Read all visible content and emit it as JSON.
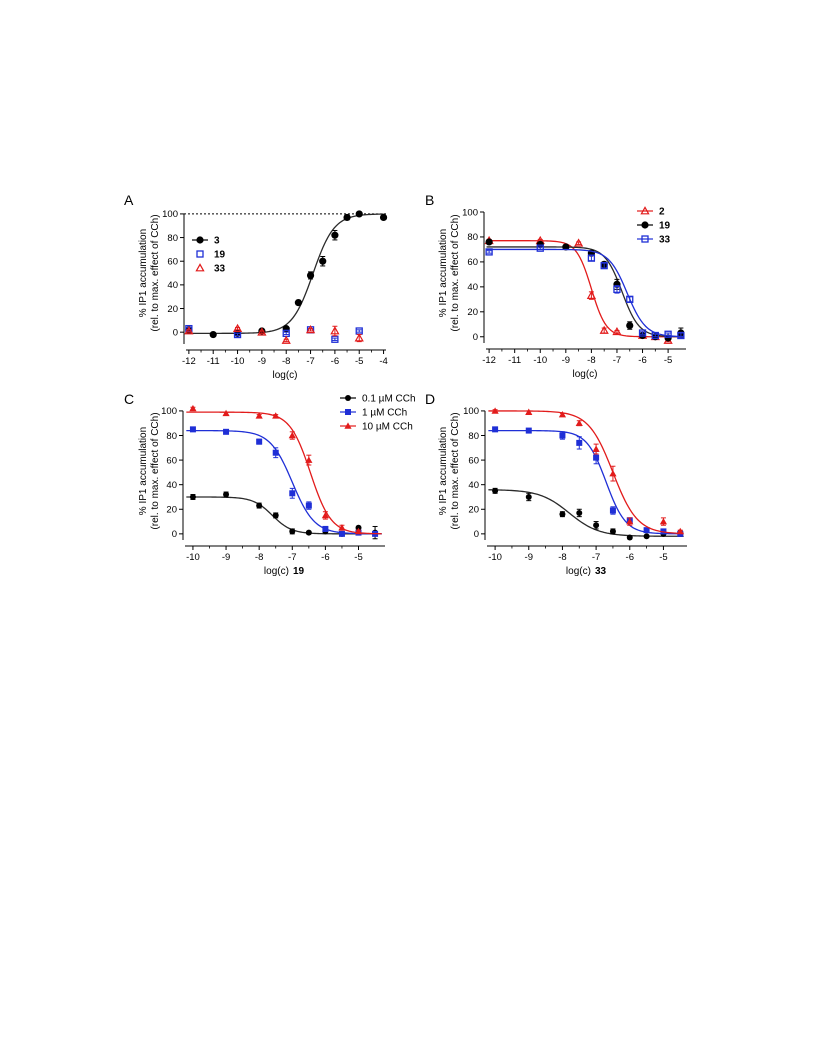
{
  "chart_data": [
    {
      "panel": "A",
      "type": "scatter",
      "xlabel": "log(c)",
      "xlabel_bold": "",
      "ylabel": [
        "% IP1 accumulation",
        "(rel. to max. effect of CCh)"
      ],
      "xlim": [
        -12.2,
        -3.9
      ],
      "ylim": [
        -10,
        105
      ],
      "xticks": [
        -12,
        -11,
        -10,
        -9,
        -8,
        -7,
        -6,
        -5,
        -4
      ],
      "yticks": [
        0,
        20,
        40,
        60,
        80,
        100
      ],
      "reference_line": 100,
      "legend_position": "left",
      "series": [
        {
          "name": "3",
          "color": "#000000",
          "marker": "circle",
          "x": [
            -12,
            -11,
            -10,
            -9,
            -8,
            -7.5,
            -7,
            -6.5,
            -6,
            -5.5,
            -5,
            -4
          ],
          "y": [
            2,
            -2,
            -1,
            1,
            3,
            25,
            48,
            60,
            82,
            97,
            100,
            97
          ],
          "err": [
            1,
            1,
            1,
            1,
            1,
            2,
            3,
            4,
            4,
            2,
            1,
            1
          ],
          "fit": {
            "kind": "agonist",
            "bottom": -1,
            "top": 100,
            "logEC50": -6.9,
            "hill": 1
          }
        },
        {
          "name": "19",
          "color": "#1f2fd6",
          "marker": "square",
          "x": [
            -12,
            -10,
            -8,
            -7,
            -6,
            -5
          ],
          "y": [
            3,
            -2,
            -1,
            2,
            -6,
            1
          ],
          "err": [
            1,
            1,
            1,
            1,
            1,
            1
          ],
          "fit": null
        },
        {
          "name": "33",
          "color": "#e21b1b",
          "marker": "triangle",
          "x": [
            -12,
            -10,
            -9,
            -8,
            -7,
            -6,
            -5
          ],
          "y": [
            1,
            3,
            0,
            -7,
            2,
            1,
            -5
          ],
          "err": [
            1,
            1,
            1,
            1,
            1,
            4,
            3
          ],
          "fit": null
        }
      ]
    },
    {
      "panel": "B",
      "type": "scatter",
      "xlabel": "log(c)",
      "xlabel_bold": "",
      "ylabel": [
        "% IP1 accumulation",
        "(rel. to max. effect of CCh)"
      ],
      "xlim": [
        -12.2,
        -4.3
      ],
      "ylim": [
        -5,
        104
      ],
      "xticks": [
        -12,
        -11,
        -10,
        -9,
        -8,
        -7,
        -6,
        -5
      ],
      "yticks": [
        0,
        20,
        40,
        60,
        80,
        100
      ],
      "reference_line": null,
      "legend_position": "top-right",
      "series": [
        {
          "name": "2",
          "color": "#e21b1b",
          "marker": "triangle",
          "x": [
            -12,
            -10,
            -8.5,
            -8,
            -7.5,
            -7,
            -6,
            -5.5,
            -5
          ],
          "y": [
            77,
            77,
            75,
            33,
            5,
            4,
            1,
            0,
            -3
          ],
          "err": [
            1,
            1,
            1,
            3,
            2,
            1,
            1,
            1,
            1
          ],
          "fit": {
            "kind": "inhibitor",
            "bottom": 0,
            "top": 77,
            "logIC50": -8.0,
            "hill": 1.5
          }
        },
        {
          "name": "19",
          "color": "#000000",
          "marker": "circle",
          "x": [
            -12,
            -10,
            -9,
            -8,
            -7.5,
            -7,
            -6.5,
            -6,
            -5.5,
            -5,
            -4.5
          ],
          "y": [
            76,
            74,
            72,
            67,
            58,
            42,
            9,
            1,
            0,
            -1,
            3
          ],
          "err": [
            1,
            1,
            1,
            2,
            2,
            4,
            3,
            1,
            1,
            1,
            4
          ],
          "fit": {
            "kind": "inhibitor",
            "bottom": 0,
            "top": 72,
            "logIC50": -6.8,
            "hill": 1.3
          }
        },
        {
          "name": "33",
          "color": "#1f2fd6",
          "marker": "square",
          "x": [
            -12,
            -10,
            -8,
            -7.5,
            -7,
            -6.5,
            -6,
            -5.5,
            -5,
            -4.5
          ],
          "y": [
            68,
            71,
            63,
            57,
            38,
            30,
            3,
            1,
            2,
            1
          ],
          "err": [
            1,
            1,
            2,
            2,
            3,
            2,
            1,
            1,
            1,
            2
          ],
          "fit": {
            "kind": "inhibitor",
            "bottom": 0,
            "top": 70,
            "logIC50": -6.6,
            "hill": 1.2
          }
        }
      ]
    },
    {
      "panel": "C",
      "type": "scatter",
      "xlabel": "log(c)",
      "xlabel_bold": "19",
      "ylabel": [
        "% IP1 accumulation",
        "(rel. to max. effect of CCh)"
      ],
      "xlim": [
        -10.3,
        -4.2
      ],
      "ylim": [
        -5,
        104
      ],
      "xticks": [
        -10,
        -9,
        -8,
        -7,
        -6,
        -5
      ],
      "yticks": [
        0,
        20,
        40,
        60,
        80,
        100
      ],
      "reference_line": null,
      "legend_position": "top-right",
      "series": [
        {
          "name": "0.1 µM CCh",
          "color": "#000000",
          "marker": "circle",
          "x": [
            -10,
            -9,
            -8,
            -7.5,
            -7,
            -6.5,
            -6,
            -5.5,
            -5,
            -4.5
          ],
          "y": [
            30,
            32,
            23,
            15,
            2,
            1,
            2,
            0,
            5,
            1
          ],
          "err": [
            2,
            2,
            2,
            2,
            2,
            1,
            1,
            1,
            1,
            5
          ],
          "fit": {
            "kind": "inhibitor",
            "bottom": 0,
            "top": 30,
            "logIC50": -7.6,
            "hill": 1.5
          }
        },
        {
          "name": "1 µM CCh",
          "color": "#1f2fd6",
          "marker": "square",
          "x": [
            -10,
            -9,
            -8,
            -7.5,
            -7,
            -6.5,
            -6,
            -5.5,
            -5,
            -4.5
          ],
          "y": [
            85,
            83,
            75,
            66,
            33,
            23,
            4,
            0,
            1,
            0
          ],
          "err": [
            1,
            1,
            2,
            4,
            4,
            3,
            2,
            1,
            1,
            1
          ],
          "fit": {
            "kind": "inhibitor",
            "bottom": 0,
            "top": 84,
            "logIC50": -7.0,
            "hill": 1.3
          }
        },
        {
          "name": "10 µM CCh",
          "color": "#e21b1b",
          "marker": "triangle",
          "x": [
            -10,
            -9,
            -8,
            -7.5,
            -7,
            -6.5,
            -6,
            -5.5,
            -5
          ],
          "y": [
            102,
            98,
            96,
            96,
            80,
            60,
            15,
            5,
            2
          ],
          "err": [
            1,
            1,
            1,
            1,
            3,
            4,
            3,
            2,
            1
          ],
          "fit": {
            "kind": "inhibitor",
            "bottom": 0,
            "top": 99,
            "logIC50": -6.45,
            "hill": 1.4
          }
        }
      ]
    },
    {
      "panel": "D",
      "type": "scatter",
      "xlabel": "log(c)",
      "xlabel_bold": "33",
      "ylabel": [
        "% IP1 accumulation",
        "(rel. to max. effect of CCh)"
      ],
      "xlim": [
        -10.3,
        -4.3
      ],
      "ylim": [
        -5,
        104
      ],
      "xticks": [
        -10,
        -9,
        -8,
        -7,
        -6,
        -5
      ],
      "yticks": [
        0,
        20,
        40,
        60,
        80,
        100
      ],
      "reference_line": null,
      "legend_position": "",
      "series": [
        {
          "name": "0.1 µM CCh",
          "color": "#000000",
          "marker": "circle",
          "x": [
            -10,
            -9,
            -8,
            -7.5,
            -7,
            -6.5,
            -6,
            -5.5,
            -5,
            -4.5
          ],
          "y": [
            35,
            30,
            16,
            17,
            7,
            2,
            -3,
            -2,
            0,
            1
          ],
          "err": [
            2,
            3,
            2,
            3,
            3,
            2,
            1,
            1,
            1,
            1
          ],
          "fit": {
            "kind": "inhibitor",
            "bottom": -2,
            "top": 36,
            "logIC50": -7.8,
            "hill": 1.0
          }
        },
        {
          "name": "1 µM CCh",
          "color": "#1f2fd6",
          "marker": "square",
          "x": [
            -10,
            -9,
            -8,
            -7.5,
            -7,
            -6.5,
            -6,
            -5.5,
            -5,
            -4.5
          ],
          "y": [
            85,
            84,
            80,
            74,
            62,
            19,
            11,
            3,
            2,
            0
          ],
          "err": [
            1,
            1,
            3,
            5,
            5,
            3,
            2,
            1,
            1,
            1
          ],
          "fit": {
            "kind": "inhibitor",
            "bottom": 0,
            "top": 84,
            "logIC50": -6.7,
            "hill": 1.5
          }
        },
        {
          "name": "10 µM CCh",
          "color": "#e21b1b",
          "marker": "triangle",
          "x": [
            -10,
            -9,
            -8,
            -7.5,
            -7,
            -6.5,
            -6,
            -5,
            -4.5
          ],
          "y": [
            100,
            99,
            97,
            90,
            69,
            49,
            10,
            10,
            2
          ],
          "err": [
            1,
            1,
            1,
            2,
            4,
            6,
            3,
            3,
            1
          ],
          "fit": {
            "kind": "inhibitor",
            "bottom": 0,
            "top": 100,
            "logIC50": -6.5,
            "hill": 1.2
          }
        }
      ]
    }
  ]
}
